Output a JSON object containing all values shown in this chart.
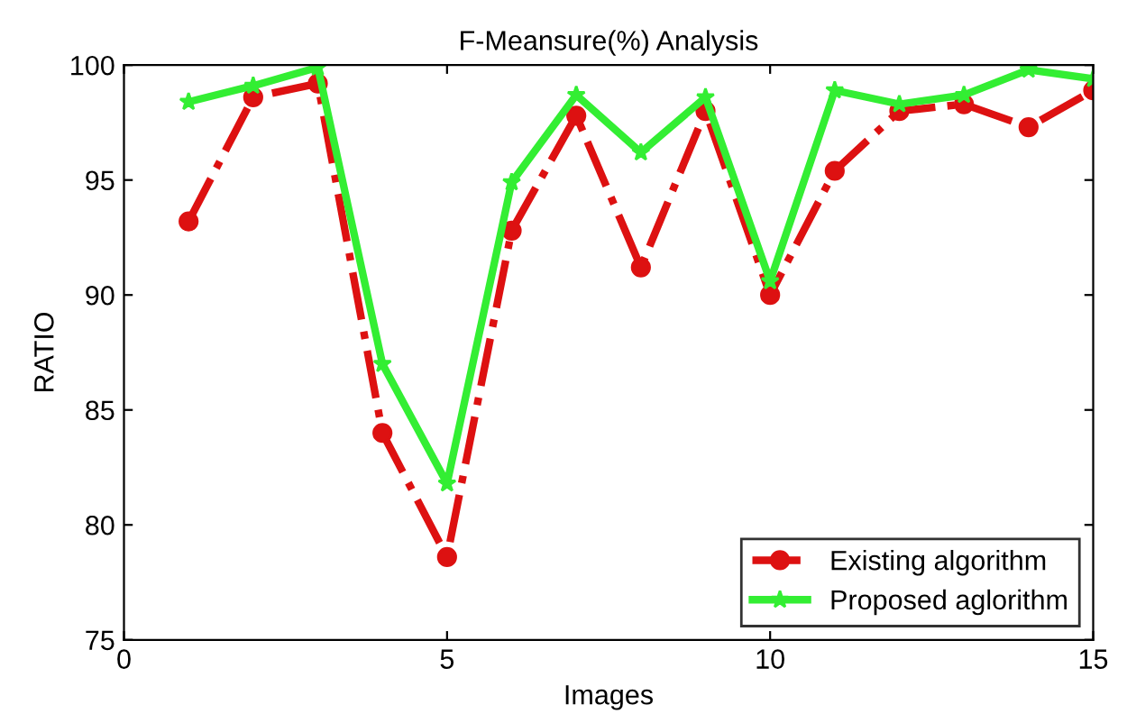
{
  "chart_data": {
    "type": "line",
    "title": "F-Meansure(%) Analysis",
    "xlabel": "Images",
    "ylabel": "RATIO",
    "x": [
      1,
      2,
      3,
      4,
      5,
      6,
      7,
      8,
      9,
      10,
      11,
      12,
      13,
      14,
      15
    ],
    "series": [
      {
        "name": "Existing algorithm",
        "color": "#dd1111",
        "marker": "circle",
        "line_style": "dashed",
        "values": [
          93.2,
          98.6,
          99.2,
          84,
          78.6,
          92.8,
          97.8,
          91.2,
          98,
          90,
          95.4,
          98,
          98.3,
          97.3,
          98.9
        ]
      },
      {
        "name": "Proposed aglorithm",
        "color": "#33ee33",
        "marker": "star",
        "line_style": "solid",
        "values": [
          98.4,
          99.1,
          99.9,
          87,
          81.8,
          94.9,
          98.7,
          96.2,
          98.6,
          90.6,
          98.9,
          98.3,
          98.7,
          99.8,
          99.4
        ]
      }
    ],
    "xlim": [
      0,
      15
    ],
    "ylim": [
      75,
      100
    ],
    "xticks": [
      0,
      5,
      10,
      15
    ],
    "yticks": [
      75,
      80,
      85,
      90,
      95,
      100
    ],
    "grid": false,
    "legend": "bottom right"
  }
}
